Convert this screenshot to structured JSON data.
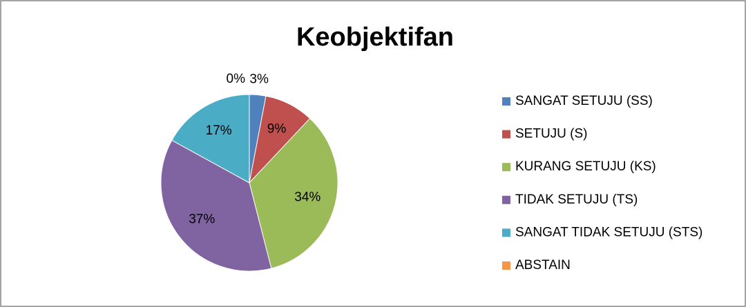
{
  "chart_data": {
    "type": "pie",
    "title": "Keobjektifan",
    "categories": [
      "SANGAT SETUJU (SS)",
      "SETUJU (S)",
      "KURANG SETUJU (KS)",
      "TIDAK SETUJU (TS)",
      "SANGAT TIDAK SETUJU (STS)",
      "ABSTAIN"
    ],
    "values": [
      3,
      9,
      34,
      37,
      17,
      0
    ],
    "value_labels": [
      "3%",
      "9%",
      "34%",
      "37%",
      "17%",
      "0%"
    ],
    "colors": [
      "#4f81bd",
      "#c0504d",
      "#9bbb59",
      "#8064a2",
      "#4bacc6",
      "#f79646"
    ],
    "legend": "right"
  }
}
